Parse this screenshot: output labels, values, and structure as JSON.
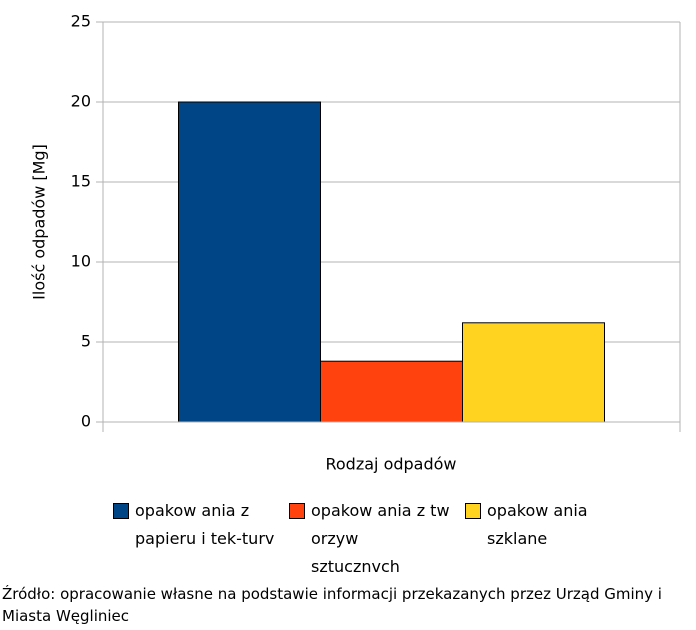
{
  "chart_data": {
    "type": "bar",
    "title": null,
    "x_label": "Rodzaj odpadów",
    "y_label": "Ilość odpadów [Mg]",
    "categories": [
      null
    ],
    "series": [
      {
        "name": "opakow ania z papieru i tek-turv",
        "color": "#004586",
        "values": [
          20
        ]
      },
      {
        "name": "opakow ania z tw orzyw sztucznvch",
        "color": "#ff420e",
        "values": [
          3.8
        ]
      },
      {
        "name": "opakow ania szklane",
        "color": "#ffd320",
        "values": [
          6.2
        ]
      }
    ],
    "ylim": [
      0,
      25
    ],
    "yticks": [
      0,
      5,
      10,
      15,
      20,
      25
    ],
    "grid": true,
    "legend": "bottom"
  },
  "note": "Źródło: opracowanie własne na podstawie informacji przekazanych przez Urząd Gminy i Miasta Węgliniec"
}
